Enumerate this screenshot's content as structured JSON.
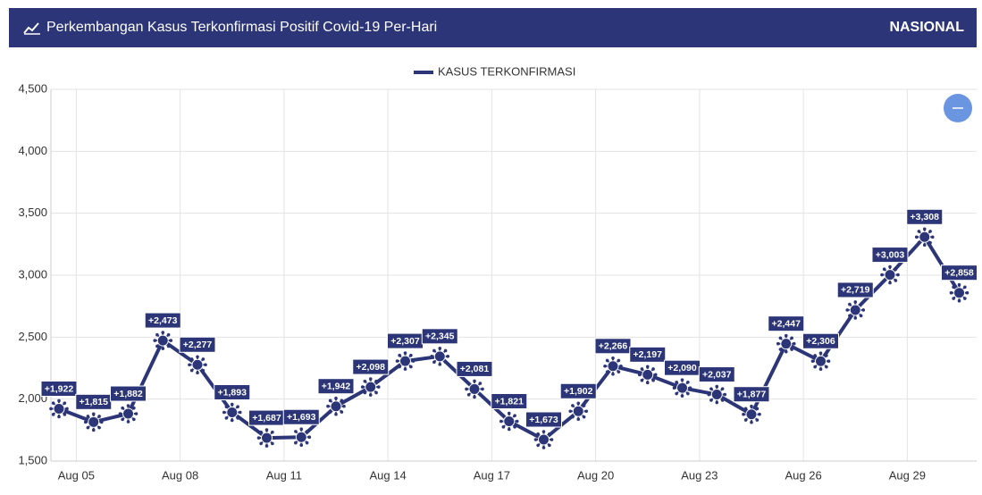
{
  "header": {
    "title": "Perkembangan Kasus Terkonfirmasi Positif Covid-19 Per-Hari",
    "scope": "NASIONAL"
  },
  "chart_data": {
    "type": "line",
    "categories": [
      null,
      "Aug 05",
      null,
      null,
      "Aug 08",
      null,
      null,
      "Aug 11",
      null,
      null,
      "Aug 14",
      null,
      null,
      "Aug 17",
      null,
      null,
      "Aug 20",
      null,
      null,
      "Aug 23",
      null,
      null,
      "Aug 26",
      null,
      null,
      "Aug 29",
      null
    ],
    "series": [
      {
        "name": "KASUS TERKONFIRMASI",
        "color": "#2b3577",
        "values": [
          1922,
          1815,
          1882,
          2473,
          2277,
          1893,
          1687,
          1693,
          1942,
          2098,
          2307,
          2345,
          2081,
          1821,
          1673,
          1902,
          2266,
          2197,
          2090,
          2037,
          1877,
          2447,
          2306,
          2719,
          3003,
          3308,
          2858
        ],
        "value_labels": [
          "+1,922",
          "+1,815",
          "+1,882",
          "+2,473",
          "+2,277",
          "+1,893",
          "+1,687",
          "+1,693",
          "+1,942",
          "+2,098",
          "+2,307",
          "+2,345",
          "+2,081",
          "+1,821",
          "+1,673",
          "+1,902",
          "+2,266",
          "+2,197",
          "+2,090",
          "+2,037",
          "+1,877",
          "+2,447",
          "+2,306",
          "+2,719",
          "+3,003",
          "+3,308",
          "+2,858"
        ]
      }
    ],
    "ylim": [
      1500,
      4500
    ],
    "yticks": [
      {
        "value": 1500,
        "label": "1,500"
      },
      {
        "value": 2000,
        "label": "2,000"
      },
      {
        "value": 2500,
        "label": "2,500"
      },
      {
        "value": 3000,
        "label": "3,000"
      },
      {
        "value": 3500,
        "label": "3,500"
      },
      {
        "value": 4000,
        "label": "4,000"
      },
      {
        "value": 4500,
        "label": "4,500"
      }
    ],
    "grid": true
  }
}
